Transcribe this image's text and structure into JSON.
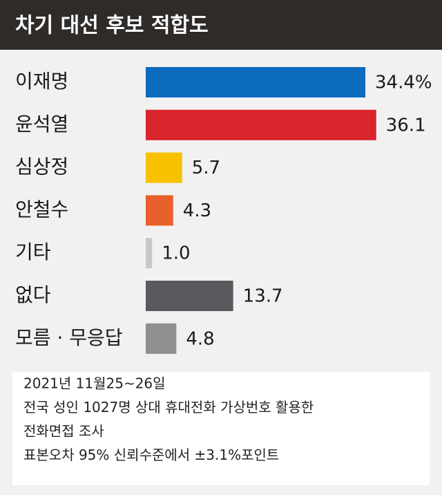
{
  "chart_data": {
    "type": "bar",
    "orientation": "horizontal",
    "title": "차기 대선 후보 적합도",
    "categories": [
      "이재명",
      "윤석열",
      "심상정",
      "안철수",
      "기타",
      "없다",
      "모름 · 무응답"
    ],
    "values": [
      34.4,
      36.1,
      5.7,
      4.3,
      1.0,
      13.7,
      4.8
    ],
    "value_labels": [
      "34.4%",
      "36.1",
      "5.7",
      "4.3",
      "1.0",
      "13.7",
      "4.8"
    ],
    "colors": [
      "#0a6bbf",
      "#d9232d",
      "#f7c100",
      "#e8602a",
      "#c8c8c8",
      "#5a5a5e",
      "#8f8f8f"
    ],
    "notes": [
      "2021년 11월25~26일",
      "전국 성인 1027명 상대 휴대전화 가상번호 활용한",
      "전화면접 조사",
      "표본오차 95% 신뢰수준에서 ±3.1%포인트"
    ]
  }
}
